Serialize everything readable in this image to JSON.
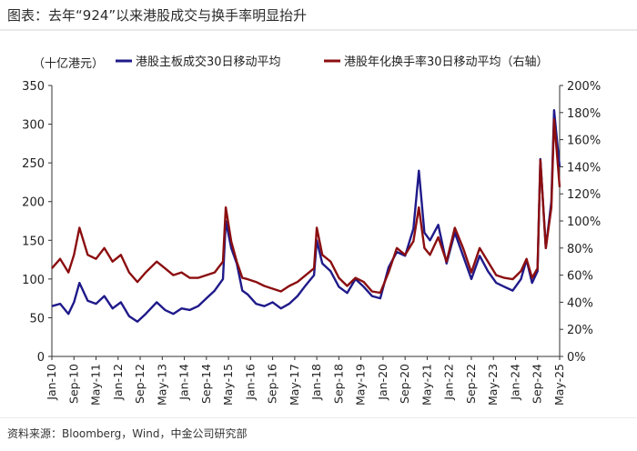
{
  "title": "图表：去年“924”以来港股成交与换手率明显抬升",
  "source": "资料来源：Bloomberg，Wind，中金公司研究部",
  "colors": {
    "series1": "#1f1a8a",
    "series2": "#8b0e10",
    "axis": "#333333"
  },
  "chart_data": {
    "type": "line",
    "left_axis_unit": "（十亿港元）",
    "ylim_left": [
      0,
      350
    ],
    "yticks_left": [
      "0",
      "50",
      "100",
      "150",
      "200",
      "250",
      "300",
      "350"
    ],
    "ylim_right": [
      0,
      200
    ],
    "yticks_right": [
      "0%",
      "20%",
      "40%",
      "60%",
      "80%",
      "100%",
      "120%",
      "140%",
      "160%",
      "180%",
      "200%"
    ],
    "x_ticks": [
      "Jan-10",
      "Sep-10",
      "May-11",
      "Jan-12",
      "Sep-12",
      "May-13",
      "Jan-14",
      "Sep-14",
      "May-15",
      "Jan-16",
      "Sep-16",
      "May-17",
      "Jan-18",
      "Sep-18",
      "May-19",
      "Jan-20",
      "Sep-20",
      "May-21",
      "Jan-22",
      "Sep-22",
      "May-23",
      "Jan-24",
      "Sep-24",
      "May-25"
    ],
    "series": [
      {
        "name": "港股主板成交30日移动平均",
        "axis": "left",
        "points": [
          [
            "2010-01",
            65
          ],
          [
            "2010-04",
            68
          ],
          [
            "2010-07",
            55
          ],
          [
            "2010-09",
            70
          ],
          [
            "2010-11",
            95
          ],
          [
            "2011-02",
            72
          ],
          [
            "2011-05",
            68
          ],
          [
            "2011-08",
            78
          ],
          [
            "2011-11",
            62
          ],
          [
            "2012-02",
            70
          ],
          [
            "2012-05",
            52
          ],
          [
            "2012-08",
            45
          ],
          [
            "2012-11",
            55
          ],
          [
            "2013-03",
            70
          ],
          [
            "2013-06",
            60
          ],
          [
            "2013-09",
            55
          ],
          [
            "2013-12",
            62
          ],
          [
            "2014-03",
            60
          ],
          [
            "2014-06",
            65
          ],
          [
            "2014-09",
            75
          ],
          [
            "2014-12",
            85
          ],
          [
            "2015-03",
            100
          ],
          [
            "2015-04",
            175
          ],
          [
            "2015-06",
            140
          ],
          [
            "2015-08",
            120
          ],
          [
            "2015-10",
            85
          ],
          [
            "2015-12",
            80
          ],
          [
            "2016-03",
            68
          ],
          [
            "2016-06",
            65
          ],
          [
            "2016-09",
            70
          ],
          [
            "2016-12",
            62
          ],
          [
            "2017-03",
            68
          ],
          [
            "2017-06",
            78
          ],
          [
            "2017-09",
            92
          ],
          [
            "2017-12",
            105
          ],
          [
            "2018-01",
            150
          ],
          [
            "2018-03",
            120
          ],
          [
            "2018-06",
            110
          ],
          [
            "2018-09",
            90
          ],
          [
            "2018-12",
            82
          ],
          [
            "2019-03",
            100
          ],
          [
            "2019-06",
            90
          ],
          [
            "2019-09",
            78
          ],
          [
            "2019-12",
            75
          ],
          [
            "2020-03",
            115
          ],
          [
            "2020-06",
            135
          ],
          [
            "2020-09",
            130
          ],
          [
            "2020-12",
            165
          ],
          [
            "2021-02",
            240
          ],
          [
            "2021-04",
            160
          ],
          [
            "2021-06",
            150
          ],
          [
            "2021-09",
            170
          ],
          [
            "2021-12",
            120
          ],
          [
            "2022-03",
            160
          ],
          [
            "2022-06",
            130
          ],
          [
            "2022-09",
            100
          ],
          [
            "2022-12",
            130
          ],
          [
            "2023-03",
            110
          ],
          [
            "2023-06",
            95
          ],
          [
            "2023-09",
            90
          ],
          [
            "2023-12",
            85
          ],
          [
            "2024-03",
            100
          ],
          [
            "2024-05",
            125
          ],
          [
            "2024-07",
            95
          ],
          [
            "2024-09",
            110
          ],
          [
            "2024-10",
            255
          ],
          [
            "2024-12",
            140
          ],
          [
            "2025-02",
            200
          ],
          [
            "2025-03",
            318
          ],
          [
            "2025-04",
            280
          ],
          [
            "2025-05",
            245
          ]
        ]
      },
      {
        "name": "港股年化换手率30日移动平均（右轴）",
        "axis": "right",
        "points": [
          [
            "2010-01",
            65
          ],
          [
            "2010-04",
            72
          ],
          [
            "2010-07",
            62
          ],
          [
            "2010-09",
            75
          ],
          [
            "2010-11",
            95
          ],
          [
            "2011-02",
            75
          ],
          [
            "2011-05",
            72
          ],
          [
            "2011-08",
            80
          ],
          [
            "2011-11",
            70
          ],
          [
            "2012-02",
            75
          ],
          [
            "2012-05",
            62
          ],
          [
            "2012-08",
            55
          ],
          [
            "2012-11",
            62
          ],
          [
            "2013-03",
            70
          ],
          [
            "2013-06",
            65
          ],
          [
            "2013-09",
            60
          ],
          [
            "2013-12",
            62
          ],
          [
            "2014-03",
            58
          ],
          [
            "2014-06",
            58
          ],
          [
            "2014-09",
            60
          ],
          [
            "2014-12",
            62
          ],
          [
            "2015-03",
            70
          ],
          [
            "2015-04",
            110
          ],
          [
            "2015-06",
            85
          ],
          [
            "2015-08",
            70
          ],
          [
            "2015-10",
            58
          ],
          [
            "2015-12",
            57
          ],
          [
            "2016-03",
            55
          ],
          [
            "2016-06",
            52
          ],
          [
            "2016-09",
            50
          ],
          [
            "2016-12",
            48
          ],
          [
            "2017-03",
            52
          ],
          [
            "2017-06",
            55
          ],
          [
            "2017-09",
            60
          ],
          [
            "2017-12",
            65
          ],
          [
            "2018-01",
            95
          ],
          [
            "2018-03",
            75
          ],
          [
            "2018-06",
            70
          ],
          [
            "2018-09",
            58
          ],
          [
            "2018-12",
            52
          ],
          [
            "2019-03",
            58
          ],
          [
            "2019-06",
            55
          ],
          [
            "2019-09",
            48
          ],
          [
            "2019-12",
            47
          ],
          [
            "2020-03",
            62
          ],
          [
            "2020-06",
            80
          ],
          [
            "2020-09",
            75
          ],
          [
            "2020-12",
            85
          ],
          [
            "2021-02",
            110
          ],
          [
            "2021-04",
            80
          ],
          [
            "2021-06",
            75
          ],
          [
            "2021-09",
            88
          ],
          [
            "2021-12",
            70
          ],
          [
            "2022-03",
            95
          ],
          [
            "2022-06",
            80
          ],
          [
            "2022-09",
            62
          ],
          [
            "2022-12",
            80
          ],
          [
            "2023-03",
            70
          ],
          [
            "2023-06",
            60
          ],
          [
            "2023-09",
            58
          ],
          [
            "2023-12",
            57
          ],
          [
            "2024-03",
            63
          ],
          [
            "2024-05",
            72
          ],
          [
            "2024-07",
            58
          ],
          [
            "2024-09",
            65
          ],
          [
            "2024-10",
            145
          ],
          [
            "2024-12",
            80
          ],
          [
            "2025-02",
            110
          ],
          [
            "2025-03",
            175
          ],
          [
            "2025-04",
            150
          ],
          [
            "2025-05",
            125
          ]
        ]
      }
    ]
  }
}
